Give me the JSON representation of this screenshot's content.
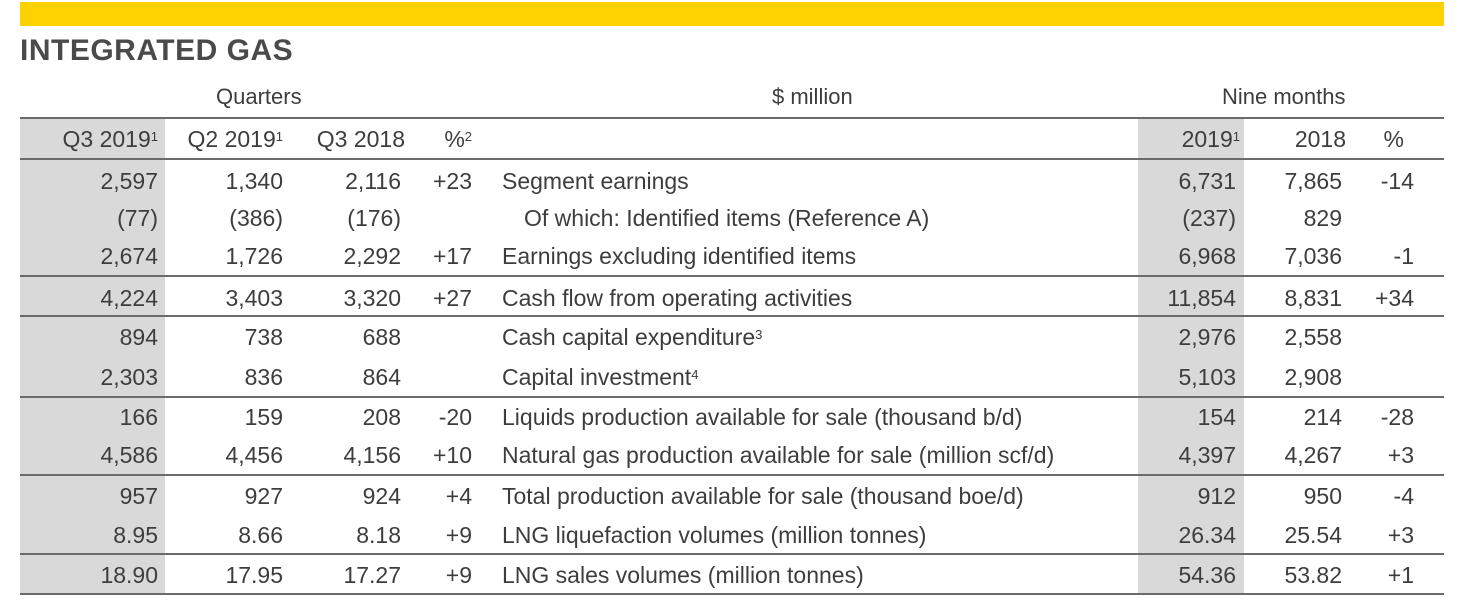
{
  "title": "INTEGRATED GAS",
  "group_headers": {
    "quarters": "Quarters",
    "unit": "$ million",
    "nine_months": "Nine months"
  },
  "columns": {
    "q3_2019": {
      "label": "Q3 2019",
      "note": "1"
    },
    "q2_2019": {
      "label": "Q2 2019",
      "note": "1"
    },
    "q3_2018": {
      "label": "Q3 2018",
      "note": ""
    },
    "q_pct": {
      "label": "%",
      "note": "2"
    },
    "nm_2019": {
      "label": "2019",
      "note": "1"
    },
    "nm_2018": {
      "label": "2018",
      "note": ""
    },
    "nm_pct": {
      "label": "%",
      "note": ""
    }
  },
  "rows": [
    {
      "q3_2019": "2,597",
      "q2_2019": "1,340",
      "q3_2018": "2,116",
      "q_pct": "+23",
      "label": "Segment earnings",
      "label_note": "",
      "nm_2019": "6,731",
      "nm_2018": "7,865",
      "nm_pct": "-14"
    },
    {
      "q3_2019": "(77)",
      "q2_2019": "(386)",
      "q3_2018": "(176)",
      "q_pct": "",
      "label": "Of which: Identified items (Reference A)",
      "label_note": "",
      "nm_2019": "(237)",
      "nm_2018": "829",
      "nm_pct": ""
    },
    {
      "q3_2019": "2,674",
      "q2_2019": "1,726",
      "q3_2018": "2,292",
      "q_pct": "+17",
      "label": "Earnings excluding identified items",
      "label_note": "",
      "nm_2019": "6,968",
      "nm_2018": "7,036",
      "nm_pct": "-1"
    },
    {
      "q3_2019": "4,224",
      "q2_2019": "3,403",
      "q3_2018": "3,320",
      "q_pct": "+27",
      "label": "Cash flow from operating activities",
      "label_note": "",
      "nm_2019": "11,854",
      "nm_2018": "8,831",
      "nm_pct": "+34"
    },
    {
      "q3_2019": "894",
      "q2_2019": "738",
      "q3_2018": "688",
      "q_pct": "",
      "label": "Cash capital expenditure",
      "label_note": "3",
      "nm_2019": "2,976",
      "nm_2018": "2,558",
      "nm_pct": ""
    },
    {
      "q3_2019": "2,303",
      "q2_2019": "836",
      "q3_2018": "864",
      "q_pct": "",
      "label": "Capital investment",
      "label_note": "4",
      "nm_2019": "5,103",
      "nm_2018": "2,908",
      "nm_pct": ""
    },
    {
      "q3_2019": "166",
      "q2_2019": "159",
      "q3_2018": "208",
      "q_pct": "-20",
      "label": "Liquids production available for sale (thousand b/d)",
      "label_note": "",
      "nm_2019": "154",
      "nm_2018": "214",
      "nm_pct": "-28"
    },
    {
      "q3_2019": "4,586",
      "q2_2019": "4,456",
      "q3_2018": "4,156",
      "q_pct": "+10",
      "label": "Natural gas production available for sale (million scf/d)",
      "label_note": "",
      "nm_2019": "4,397",
      "nm_2018": "4,267",
      "nm_pct": "+3"
    },
    {
      "q3_2019": "957",
      "q2_2019": "927",
      "q3_2018": "924",
      "q_pct": "+4",
      "label": "Total production available for sale (thousand boe/d)",
      "label_note": "",
      "nm_2019": "912",
      "nm_2018": "950",
      "nm_pct": "-4"
    },
    {
      "q3_2019": "8.95",
      "q2_2019": "8.66",
      "q3_2018": "8.18",
      "q_pct": "+9",
      "label": "LNG liquefaction volumes (million tonnes)",
      "label_note": "",
      "nm_2019": "26.34",
      "nm_2018": "25.54",
      "nm_pct": "+3"
    },
    {
      "q3_2019": "18.90",
      "q2_2019": "17.95",
      "q3_2018": "17.27",
      "q_pct": "+9",
      "label": "LNG sales volumes (million tonnes)",
      "label_note": "",
      "nm_2019": "54.36",
      "nm_2018": "53.82",
      "nm_pct": "+1"
    }
  ],
  "colors": {
    "accent_bar": "#fed100",
    "shade": "#d9d9d9",
    "rule": "#6b6b6b",
    "text": "#3d3d3d"
  }
}
